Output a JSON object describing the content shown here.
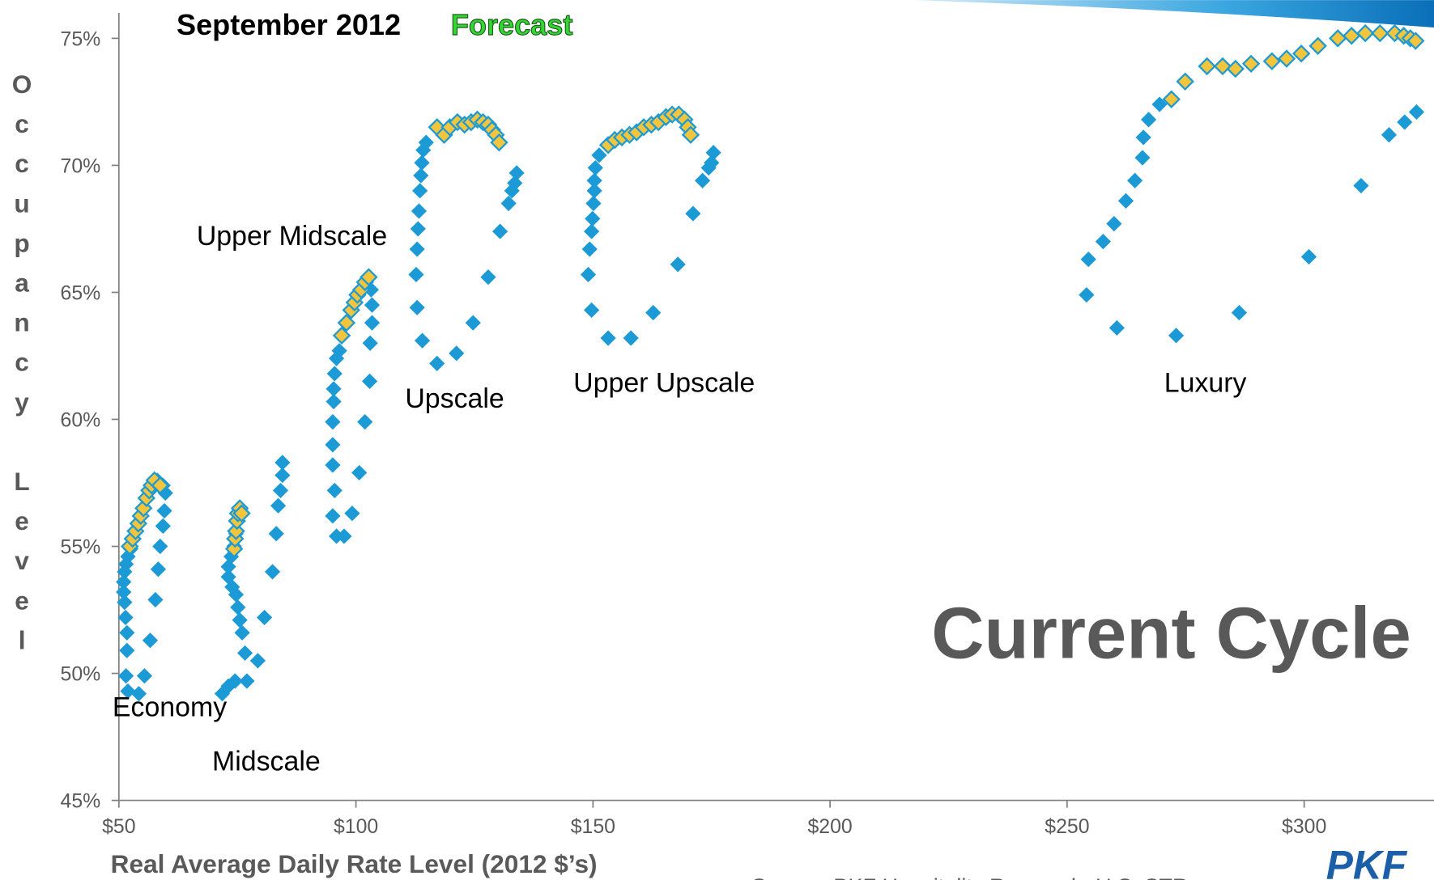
{
  "chart_data": {
    "type": "scatter",
    "title": "September 2012",
    "subtitle": "Forecast",
    "x_label": "Real Average Daily Rate Level (2012 $’s)",
    "y_label": "Occupancy Level",
    "annotations": [
      "Economy",
      "Midscale",
      "Upper Midscale",
      "Upscale",
      "Upper Upscale",
      "Luxury",
      "Current Cycle"
    ],
    "source": "Source: PKF Hospitality Research, U.S. STR",
    "logo": "PKF",
    "xlim": [
      50,
      327
    ],
    "ylim": [
      45,
      76
    ],
    "xticks": [
      {
        "value": 50,
        "label": "$50"
      },
      {
        "value": 100,
        "label": "$100"
      },
      {
        "value": 150,
        "label": "$150"
      },
      {
        "value": 200,
        "label": "$200"
      },
      {
        "value": 250,
        "label": "$250"
      },
      {
        "value": 300,
        "label": "$300"
      }
    ],
    "yticks": [
      {
        "value": 45,
        "label": "45%"
      },
      {
        "value": 50,
        "label": "50%"
      },
      {
        "value": 55,
        "label": "55%"
      },
      {
        "value": 60,
        "label": "60%"
      },
      {
        "value": 65,
        "label": "65%"
      },
      {
        "value": 70,
        "label": "70%"
      },
      {
        "value": 75,
        "label": "75%"
      }
    ],
    "series": [
      {
        "color": "#1b9ad6",
        "x": [
          51.5,
          51.9,
          54.2,
          55.4,
          51.7,
          51.7,
          51.4,
          51.2,
          51.0,
          51.0,
          51.2,
          51.5,
          51.9,
          52.5,
          58.1,
          59.3,
          59.8,
          59.6,
          59.3,
          58.7,
          58.3,
          57.7,
          56.6,
          71.8,
          73.1,
          74.5,
          76.6,
          76.0,
          75.5,
          75.1,
          74.7,
          73.9,
          73.1,
          73.1,
          73.7,
          74.3,
          74.7,
          75.5,
          77.0,
          79.3,
          80.7,
          82.4,
          83.2,
          83.6,
          84.1,
          84.5,
          84.5,
          95.1,
          95.5,
          95.1,
          95.1,
          95.1,
          95.3,
          95.3,
          95.5,
          95.9,
          96.5,
          97.5,
          95.9,
          99.2,
          100.7,
          101.9,
          102.9,
          103.0,
          103.4,
          103.4,
          103.2,
          117.1,
          114.0,
          112.9,
          112.7,
          112.9,
          113.1,
          113.3,
          113.5,
          113.7,
          113.9,
          114.2,
          114.8,
          121.2,
          124.7,
          127.9,
          130.4,
          132.2,
          132.9,
          133.5,
          133.9,
          153.2,
          158.0,
          149.0,
          149.3,
          149.7,
          149.9,
          150.1,
          150.3,
          150.3,
          150.5,
          151.3,
          149.7,
          162.7,
          167.9,
          171.1,
          173.1,
          174.4,
          175.0,
          175.4,
          254.1,
          254.5,
          260.5,
          257.6,
          259.9,
          262.4,
          264.3,
          265.9,
          266.1,
          267.2,
          269.5,
          273.0,
          286.3,
          301.0,
          312.0,
          317.9,
          321.2,
          323.7
        ],
        "values": [
          49.9,
          49.3,
          49.2,
          49.9,
          50.9,
          51.6,
          52.2,
          52.8,
          53.2,
          53.6,
          54.0,
          54.3,
          54.6,
          54.9,
          57.6,
          57.4,
          57.1,
          56.4,
          55.8,
          55.0,
          54.1,
          52.9,
          51.3,
          49.2,
          49.5,
          49.7,
          50.8,
          51.6,
          52.1,
          52.6,
          53.1,
          53.4,
          53.8,
          54.2,
          54.6,
          55.0,
          55.5,
          56.4,
          49.7,
          50.5,
          52.2,
          54.0,
          55.5,
          56.6,
          57.2,
          57.8,
          58.3,
          56.2,
          57.2,
          58.2,
          59.0,
          59.9,
          60.7,
          61.2,
          61.8,
          62.4,
          62.7,
          55.4,
          55.4,
          56.3,
          57.9,
          59.9,
          61.5,
          63.0,
          63.8,
          64.5,
          65.1,
          62.2,
          63.1,
          64.4,
          65.7,
          66.7,
          67.5,
          68.2,
          69.0,
          69.6,
          70.1,
          70.6,
          70.9,
          62.6,
          63.8,
          65.6,
          67.4,
          68.5,
          69.0,
          69.3,
          69.7,
          63.2,
          63.2,
          65.7,
          66.7,
          67.4,
          67.9,
          68.5,
          69.0,
          69.4,
          69.9,
          70.4,
          64.3,
          64.2,
          66.1,
          68.1,
          69.4,
          69.9,
          70.1,
          70.5,
          64.9,
          66.3,
          63.6,
          67.0,
          67.7,
          68.6,
          69.4,
          70.3,
          71.1,
          71.8,
          72.4,
          63.3,
          64.2,
          66.4,
          69.2,
          71.2,
          71.7,
          72.1
        ]
      },
      {
        "color": "#f2c53d",
        "x": [
          52.3,
          52.9,
          53.5,
          54.1,
          54.6,
          55.2,
          55.8,
          56.4,
          56.9,
          57.5,
          58.7,
          74.3,
          74.5,
          74.7,
          74.9,
          75.1,
          75.5,
          75.9,
          97.0,
          98.0,
          99.0,
          99.7,
          100.3,
          101.1,
          101.9,
          102.7,
          117.1,
          118.6,
          119.8,
          121.4,
          122.9,
          124.3,
          125.6,
          126.8,
          127.9,
          128.7,
          129.5,
          130.2,
          153.2,
          154.6,
          156.1,
          157.7,
          159.2,
          160.7,
          162.3,
          163.8,
          165.4,
          166.7,
          168.1,
          169.3,
          170.0,
          170.6,
          272.0,
          274.9,
          279.5,
          282.8,
          285.5,
          288.8,
          293.2,
          296.3,
          299.4,
          302.9,
          307.1,
          310.0,
          312.9,
          316.0,
          319.1,
          321.0,
          322.4,
          323.5
        ],
        "values": [
          55.0,
          55.3,
          55.6,
          55.9,
          56.2,
          56.5,
          56.9,
          57.2,
          57.4,
          57.6,
          57.4,
          54.9,
          55.3,
          55.6,
          56.0,
          56.3,
          56.5,
          56.3,
          63.3,
          63.8,
          64.3,
          64.6,
          64.9,
          65.1,
          65.4,
          65.6,
          71.5,
          71.2,
          71.5,
          71.7,
          71.6,
          71.7,
          71.8,
          71.7,
          71.6,
          71.4,
          71.2,
          70.9,
          70.8,
          71.0,
          71.1,
          71.2,
          71.3,
          71.5,
          71.6,
          71.7,
          71.9,
          72.0,
          72.0,
          71.8,
          71.5,
          71.2,
          72.6,
          73.3,
          73.9,
          73.9,
          73.8,
          74.0,
          74.1,
          74.2,
          74.4,
          74.7,
          75.0,
          75.1,
          75.2,
          75.2,
          75.2,
          75.1,
          75.0,
          74.9
        ]
      }
    ]
  }
}
